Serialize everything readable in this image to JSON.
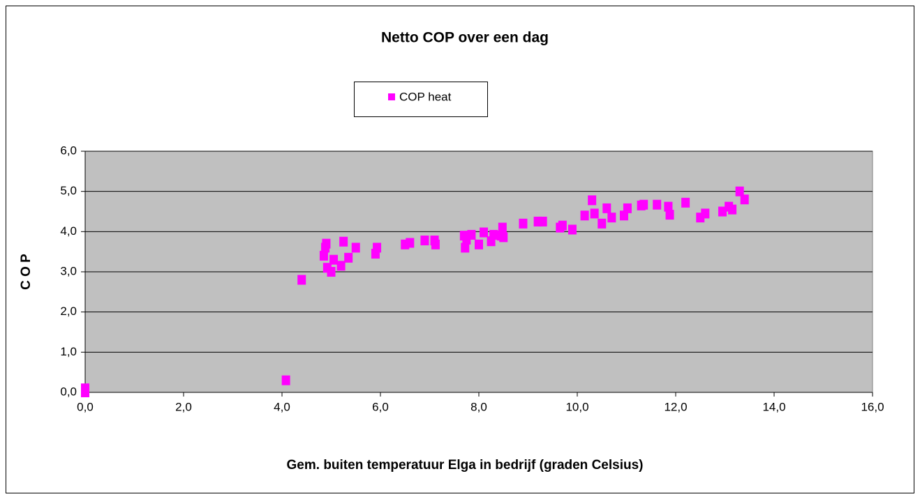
{
  "chart_data": {
    "type": "scatter",
    "title": "Netto COP over een dag",
    "xlabel": "Gem. buiten temperatuur Elga in bedrijf (graden Celsius)",
    "ylabel": "C O P",
    "legend": "top",
    "grid": true,
    "xlim": [
      0,
      16
    ],
    "ylim": [
      0,
      6
    ],
    "xticks": [
      {
        "value": 0,
        "label": "0,0"
      },
      {
        "value": 2,
        "label": "2,0"
      },
      {
        "value": 4,
        "label": "4,0"
      },
      {
        "value": 6,
        "label": "6,0"
      },
      {
        "value": 8,
        "label": "8,0"
      },
      {
        "value": 10,
        "label": "10,0"
      },
      {
        "value": 12,
        "label": "12,0"
      },
      {
        "value": 14,
        "label": "14,0"
      },
      {
        "value": 16,
        "label": "16,0"
      }
    ],
    "yticks": [
      {
        "value": 0,
        "label": "0,0"
      },
      {
        "value": 1,
        "label": "1,0"
      },
      {
        "value": 2,
        "label": "2,0"
      },
      {
        "value": 3,
        "label": "3,0"
      },
      {
        "value": 4,
        "label": "4,0"
      },
      {
        "value": 5,
        "label": "5,0"
      },
      {
        "value": 6,
        "label": "6,0"
      }
    ],
    "series": [
      {
        "name": "COP heat",
        "color": "#ff00ff",
        "x": [
          0,
          0,
          4.08,
          4.4,
          4.85,
          4.88,
          4.9,
          4.92,
          5.0,
          5.05,
          5.2,
          5.25,
          5.35,
          5.5,
          5.9,
          5.93,
          6.5,
          6.6,
          6.9,
          7.1,
          7.12,
          7.7,
          7.72,
          7.75,
          7.85,
          8.0,
          8.1,
          8.25,
          8.3,
          8.45,
          8.48,
          8.5,
          8.9,
          9.2,
          9.3,
          9.65,
          9.7,
          9.9,
          10.15,
          10.3,
          10.35,
          10.5,
          10.6,
          10.7,
          10.95,
          11.02,
          11.3,
          11.35,
          11.62,
          11.85,
          11.88,
          12.2,
          12.5,
          12.6,
          12.95,
          13.08,
          13.15,
          13.3,
          13.4
        ],
        "values": [
          0.1,
          0.0,
          0.3,
          2.8,
          3.4,
          3.6,
          3.7,
          3.1,
          3.0,
          3.3,
          3.15,
          3.75,
          3.35,
          3.6,
          3.45,
          3.6,
          3.68,
          3.72,
          3.78,
          3.78,
          3.68,
          3.9,
          3.6,
          3.8,
          3.92,
          3.68,
          3.98,
          3.76,
          3.92,
          3.9,
          4.1,
          3.86,
          4.2,
          4.25,
          4.25,
          4.1,
          4.15,
          4.05,
          4.4,
          4.78,
          4.45,
          4.2,
          4.58,
          4.35,
          4.4,
          4.58,
          4.65,
          4.67,
          4.67,
          4.62,
          4.42,
          4.72,
          4.35,
          4.45,
          4.5,
          4.62,
          4.55,
          5.0,
          4.8
        ]
      }
    ]
  }
}
